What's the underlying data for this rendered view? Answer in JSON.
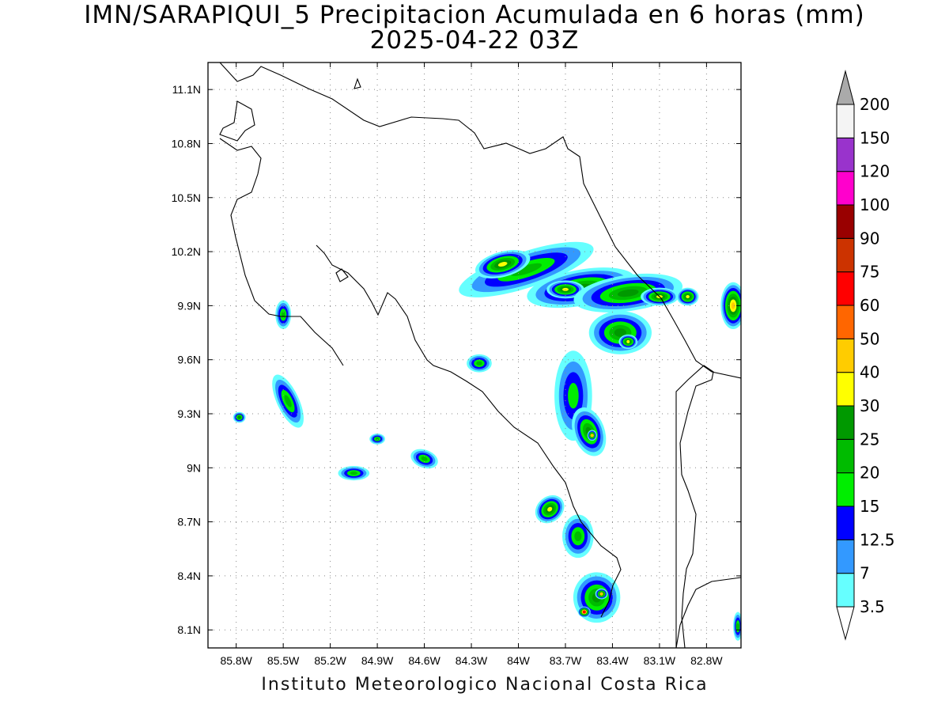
{
  "title": "IMN/SARAPIQUI_5 Precipitacion Acumulada en 6 horas (mm)",
  "subtitle": "2025-04-22 03Z",
  "footer": "Instituto Meteorologico Nacional Costa Rica",
  "map": {
    "lon_range": [
      -85.98,
      -82.58
    ],
    "lat_range": [
      8.0,
      11.25
    ],
    "lon_ticks": [
      -85.8,
      -85.5,
      -85.2,
      -84.9,
      -84.6,
      -84.3,
      -84.0,
      -83.7,
      -83.4,
      -83.1,
      -82.8
    ],
    "lon_tick_labels": [
      "85.8W",
      "85.5W",
      "85.2W",
      "84.9W",
      "84.6W",
      "84.3W",
      "84W",
      "83.7W",
      "83.4W",
      "83.1W",
      "82.8W"
    ],
    "lat_ticks": [
      8.1,
      8.4,
      8.7,
      9.0,
      9.3,
      9.6,
      9.9,
      10.2,
      10.5,
      10.8,
      11.1
    ],
    "lat_tick_labels": [
      "8.1N",
      "8.4N",
      "8.7N",
      "9N",
      "9.3N",
      "9.6N",
      "9.9N",
      "10.2N",
      "10.5N",
      "10.8N",
      "11.1N"
    ],
    "grid": true
  },
  "colorbar": {
    "labels": [
      "3.5",
      "7",
      "12.5",
      "15",
      "20",
      "25",
      "30",
      "40",
      "50",
      "60",
      "75",
      "90",
      "100",
      "120",
      "150",
      "200"
    ],
    "colors": [
      "#66ffff",
      "#3399ff",
      "#0000ff",
      "#00ee00",
      "#00bb00",
      "#009900",
      "#ffff00",
      "#ffcc00",
      "#ff6600",
      "#ff0000",
      "#cc3300",
      "#990000",
      "#ff00cc",
      "#9933cc",
      "#f4f4f4",
      "#aaaaaa"
    ]
  },
  "precip_cells": [
    {
      "lon": -83.95,
      "lat": 10.1,
      "rx_deg": 0.45,
      "ry_deg": 0.1,
      "rot": 18,
      "level": 4
    },
    {
      "lon": -84.1,
      "lat": 10.13,
      "rx_deg": 0.18,
      "ry_deg": 0.07,
      "rot": 15,
      "level": 6
    },
    {
      "lon": -83.6,
      "lat": 10.0,
      "rx_deg": 0.35,
      "ry_deg": 0.1,
      "rot": 10,
      "level": 5
    },
    {
      "lon": -83.7,
      "lat": 9.99,
      "rx_deg": 0.12,
      "ry_deg": 0.05,
      "rot": 0,
      "level": 6
    },
    {
      "lon": -83.3,
      "lat": 9.97,
      "rx_deg": 0.35,
      "ry_deg": 0.1,
      "rot": 8,
      "level": 5
    },
    {
      "lon": -83.1,
      "lat": 9.95,
      "rx_deg": 0.12,
      "ry_deg": 0.05,
      "rot": 0,
      "level": 6
    },
    {
      "lon": -83.35,
      "lat": 9.75,
      "rx_deg": 0.2,
      "ry_deg": 0.12,
      "rot": 0,
      "level": 5
    },
    {
      "lon": -83.3,
      "lat": 9.7,
      "rx_deg": 0.06,
      "ry_deg": 0.04,
      "rot": 0,
      "level": 6
    },
    {
      "lon": -82.92,
      "lat": 9.95,
      "rx_deg": 0.07,
      "ry_deg": 0.05,
      "rot": 0,
      "level": 6
    },
    {
      "lon": -82.63,
      "lat": 9.9,
      "rx_deg": 0.08,
      "ry_deg": 0.13,
      "rot": 0,
      "level": 7
    },
    {
      "lon": -83.65,
      "lat": 9.4,
      "rx_deg": 0.12,
      "ry_deg": 0.25,
      "rot": 0,
      "level": 3
    },
    {
      "lon": -83.55,
      "lat": 9.2,
      "rx_deg": 0.1,
      "ry_deg": 0.14,
      "rot": 20,
      "level": 5
    },
    {
      "lon": -83.53,
      "lat": 9.18,
      "rx_deg": 0.03,
      "ry_deg": 0.03,
      "rot": 0,
      "level": 7
    },
    {
      "lon": -85.47,
      "lat": 9.37,
      "rx_deg": 0.07,
      "ry_deg": 0.16,
      "rot": 25,
      "level": 4
    },
    {
      "lon": -85.78,
      "lat": 9.28,
      "rx_deg": 0.04,
      "ry_deg": 0.03,
      "rot": 0,
      "level": 5
    },
    {
      "lon": -85.5,
      "lat": 9.85,
      "rx_deg": 0.05,
      "ry_deg": 0.08,
      "rot": 0,
      "level": 4
    },
    {
      "lon": -84.25,
      "lat": 9.58,
      "rx_deg": 0.08,
      "ry_deg": 0.05,
      "rot": 0,
      "level": 4
    },
    {
      "lon": -85.05,
      "lat": 8.97,
      "rx_deg": 0.1,
      "ry_deg": 0.04,
      "rot": 0,
      "level": 4
    },
    {
      "lon": -84.6,
      "lat": 9.05,
      "rx_deg": 0.09,
      "ry_deg": 0.05,
      "rot": -20,
      "level": 4
    },
    {
      "lon": -84.9,
      "lat": 9.16,
      "rx_deg": 0.05,
      "ry_deg": 0.03,
      "rot": 0,
      "level": 4
    },
    {
      "lon": -83.8,
      "lat": 8.77,
      "rx_deg": 0.1,
      "ry_deg": 0.07,
      "rot": 40,
      "level": 6
    },
    {
      "lon": -83.62,
      "lat": 8.62,
      "rx_deg": 0.1,
      "ry_deg": 0.12,
      "rot": 0,
      "level": 4
    },
    {
      "lon": -83.5,
      "lat": 8.28,
      "rx_deg": 0.15,
      "ry_deg": 0.14,
      "rot": 0,
      "level": 5
    },
    {
      "lon": -83.58,
      "lat": 8.2,
      "rx_deg": 0.04,
      "ry_deg": 0.03,
      "rot": 0,
      "level": 9
    },
    {
      "lon": -83.47,
      "lat": 8.3,
      "rx_deg": 0.04,
      "ry_deg": 0.03,
      "rot": 0,
      "level": 7
    },
    {
      "lon": -82.6,
      "lat": 8.12,
      "rx_deg": 0.03,
      "ry_deg": 0.08,
      "rot": 0,
      "level": 4
    }
  ]
}
